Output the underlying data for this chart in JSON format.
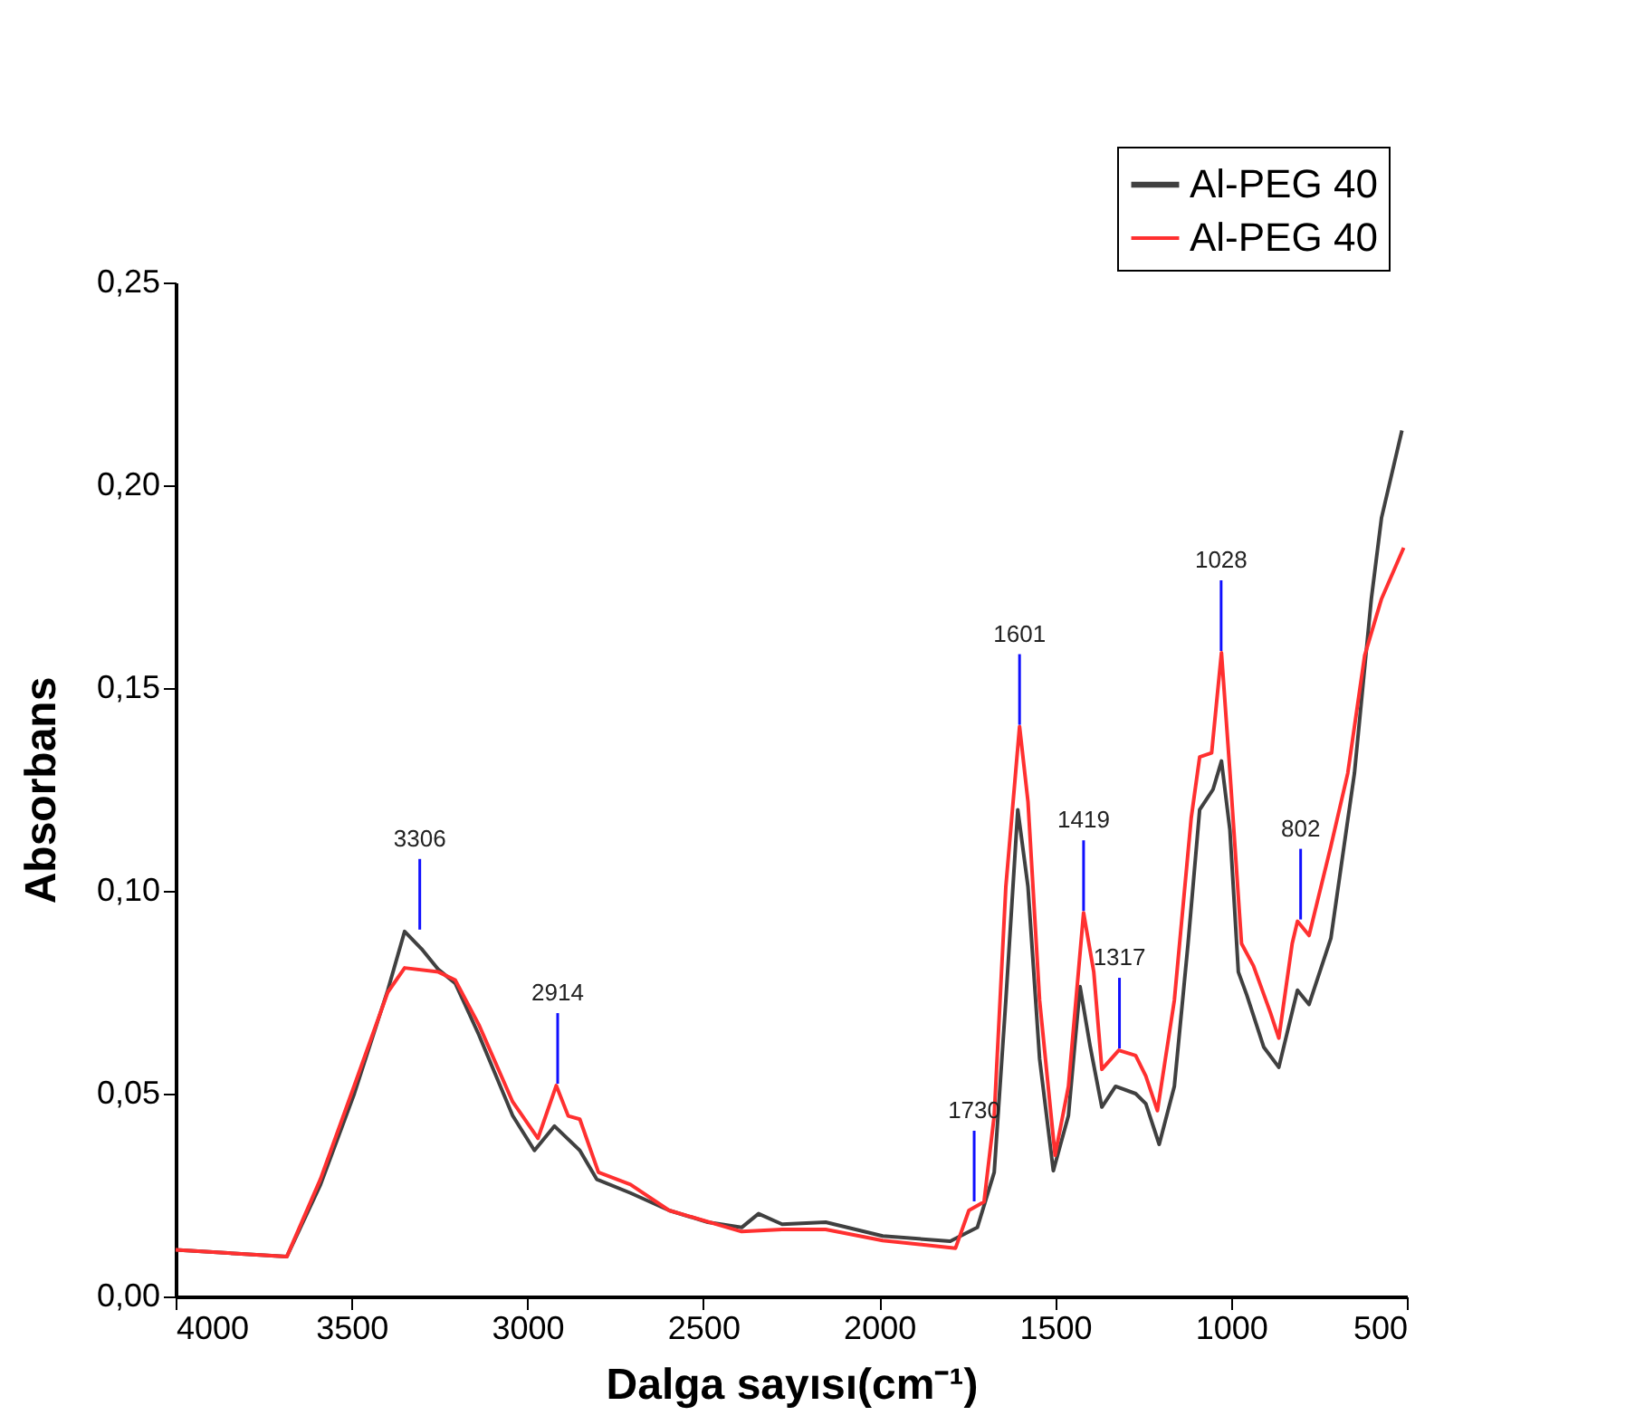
{
  "chart_data": {
    "type": "line",
    "xlabel": "Dalga sayısı(cm⁻¹)",
    "ylabel": "Absorbans",
    "xlim": [
      4000,
      500
    ],
    "xticks": [
      4000,
      3500,
      3000,
      2500,
      2000,
      1500,
      1000,
      500
    ],
    "ylim": [
      0,
      0.25
    ],
    "yticks": [
      {
        "value": 0,
        "label": "0,00"
      },
      {
        "value": 0.05,
        "label": "0,05"
      },
      {
        "value": 0.1,
        "label": "0,10"
      },
      {
        "value": 0.15,
        "label": "0,15"
      },
      {
        "value": 0.2,
        "label": "0,20"
      },
      {
        "value": 0.25,
        "label": "0,25"
      }
    ],
    "legend": "top right",
    "grid": false,
    "line_style": "solid",
    "marker": "none",
    "series": [
      {
        "name": "Al-PEG 40",
        "color": "#404040",
        "x": [
          4000,
          3684,
          3588,
          3492,
          3397,
          3349,
          3301,
          3253,
          3205,
          3138,
          3042,
          2980,
          2923,
          2851,
          2803,
          2707,
          2597,
          2487,
          2391,
          2343,
          2276,
          2152,
          1990,
          1798,
          1721,
          1673,
          1640,
          1606,
          1577,
          1544,
          1505,
          1462,
          1429,
          1400,
          1367,
          1328,
          1271,
          1242,
          1204,
          1161,
          1122,
          1089,
          1051,
          1027,
          1003,
          979,
          955,
          907,
          864,
          811,
          778,
          716,
          649,
          601,
          572,
          514
        ],
        "values": [
          0.0115,
          0.0098,
          0.0276,
          0.05,
          0.0755,
          0.09,
          0.0857,
          0.0806,
          0.0772,
          0.0645,
          0.0446,
          0.036,
          0.042,
          0.036,
          0.0289,
          0.0255,
          0.0212,
          0.0183,
          0.017,
          0.0204,
          0.0178,
          0.0183,
          0.0149,
          0.0136,
          0.017,
          0.0306,
          0.073,
          0.12,
          0.101,
          0.0586,
          0.031,
          0.0446,
          0.0764,
          0.0615,
          0.0467,
          0.0518,
          0.05,
          0.0475,
          0.0375,
          0.0518,
          0.087,
          0.12,
          0.125,
          0.132,
          0.115,
          0.08,
          0.0743,
          0.0615,
          0.0565,
          0.0755,
          0.072,
          0.0883,
          0.129,
          0.172,
          0.192,
          0.2135
        ]
      },
      {
        "name": "Al-PEG 40",
        "color": "#ff3030",
        "x": [
          4000,
          3684,
          3588,
          3492,
          3397,
          3349,
          3253,
          3205,
          3138,
          3042,
          2970,
          2918,
          2884,
          2851,
          2798,
          2707,
          2597,
          2391,
          2276,
          2152,
          1990,
          1783,
          1745,
          1702,
          1673,
          1640,
          1601,
          1577,
          1544,
          1500,
          1462,
          1419,
          1390,
          1367,
          1319,
          1271,
          1242,
          1209,
          1161,
          1113,
          1089,
          1055,
          1027,
          1003,
          970,
          936,
          888,
          864,
          826,
          811,
          778,
          716,
          668,
          620,
          572,
          509
        ],
        "values": [
          0.0115,
          0.0098,
          0.029,
          0.052,
          0.075,
          0.081,
          0.08,
          0.078,
          0.067,
          0.048,
          0.039,
          0.052,
          0.0445,
          0.0437,
          0.0306,
          0.0276,
          0.0212,
          0.016,
          0.0165,
          0.0165,
          0.0138,
          0.0119,
          0.0212,
          0.0233,
          0.0446,
          0.101,
          0.1405,
          0.122,
          0.073,
          0.0348,
          0.0518,
          0.0946,
          0.08,
          0.056,
          0.0607,
          0.0594,
          0.0543,
          0.0458,
          0.073,
          0.118,
          0.133,
          0.134,
          0.1587,
          0.1294,
          0.087,
          0.0815,
          0.07,
          0.0637,
          0.087,
          0.0925,
          0.089,
          0.111,
          0.129,
          0.158,
          0.172,
          0.1846
        ]
      }
    ],
    "annotations": [
      {
        "text": "3306",
        "x": 3306,
        "y": 0.09
      },
      {
        "text": "2914",
        "x": 2914,
        "y": 0.052
      },
      {
        "text": "1730",
        "x": 1730,
        "y": 0.023
      },
      {
        "text": "1601",
        "x": 1601,
        "y": 0.1405
      },
      {
        "text": "1419",
        "x": 1419,
        "y": 0.0946
      },
      {
        "text": "1317",
        "x": 1317,
        "y": 0.0607
      },
      {
        "text": "1028",
        "x": 1028,
        "y": 0.1587
      },
      {
        "text": "802",
        "x": 802,
        "y": 0.0925
      }
    ]
  }
}
